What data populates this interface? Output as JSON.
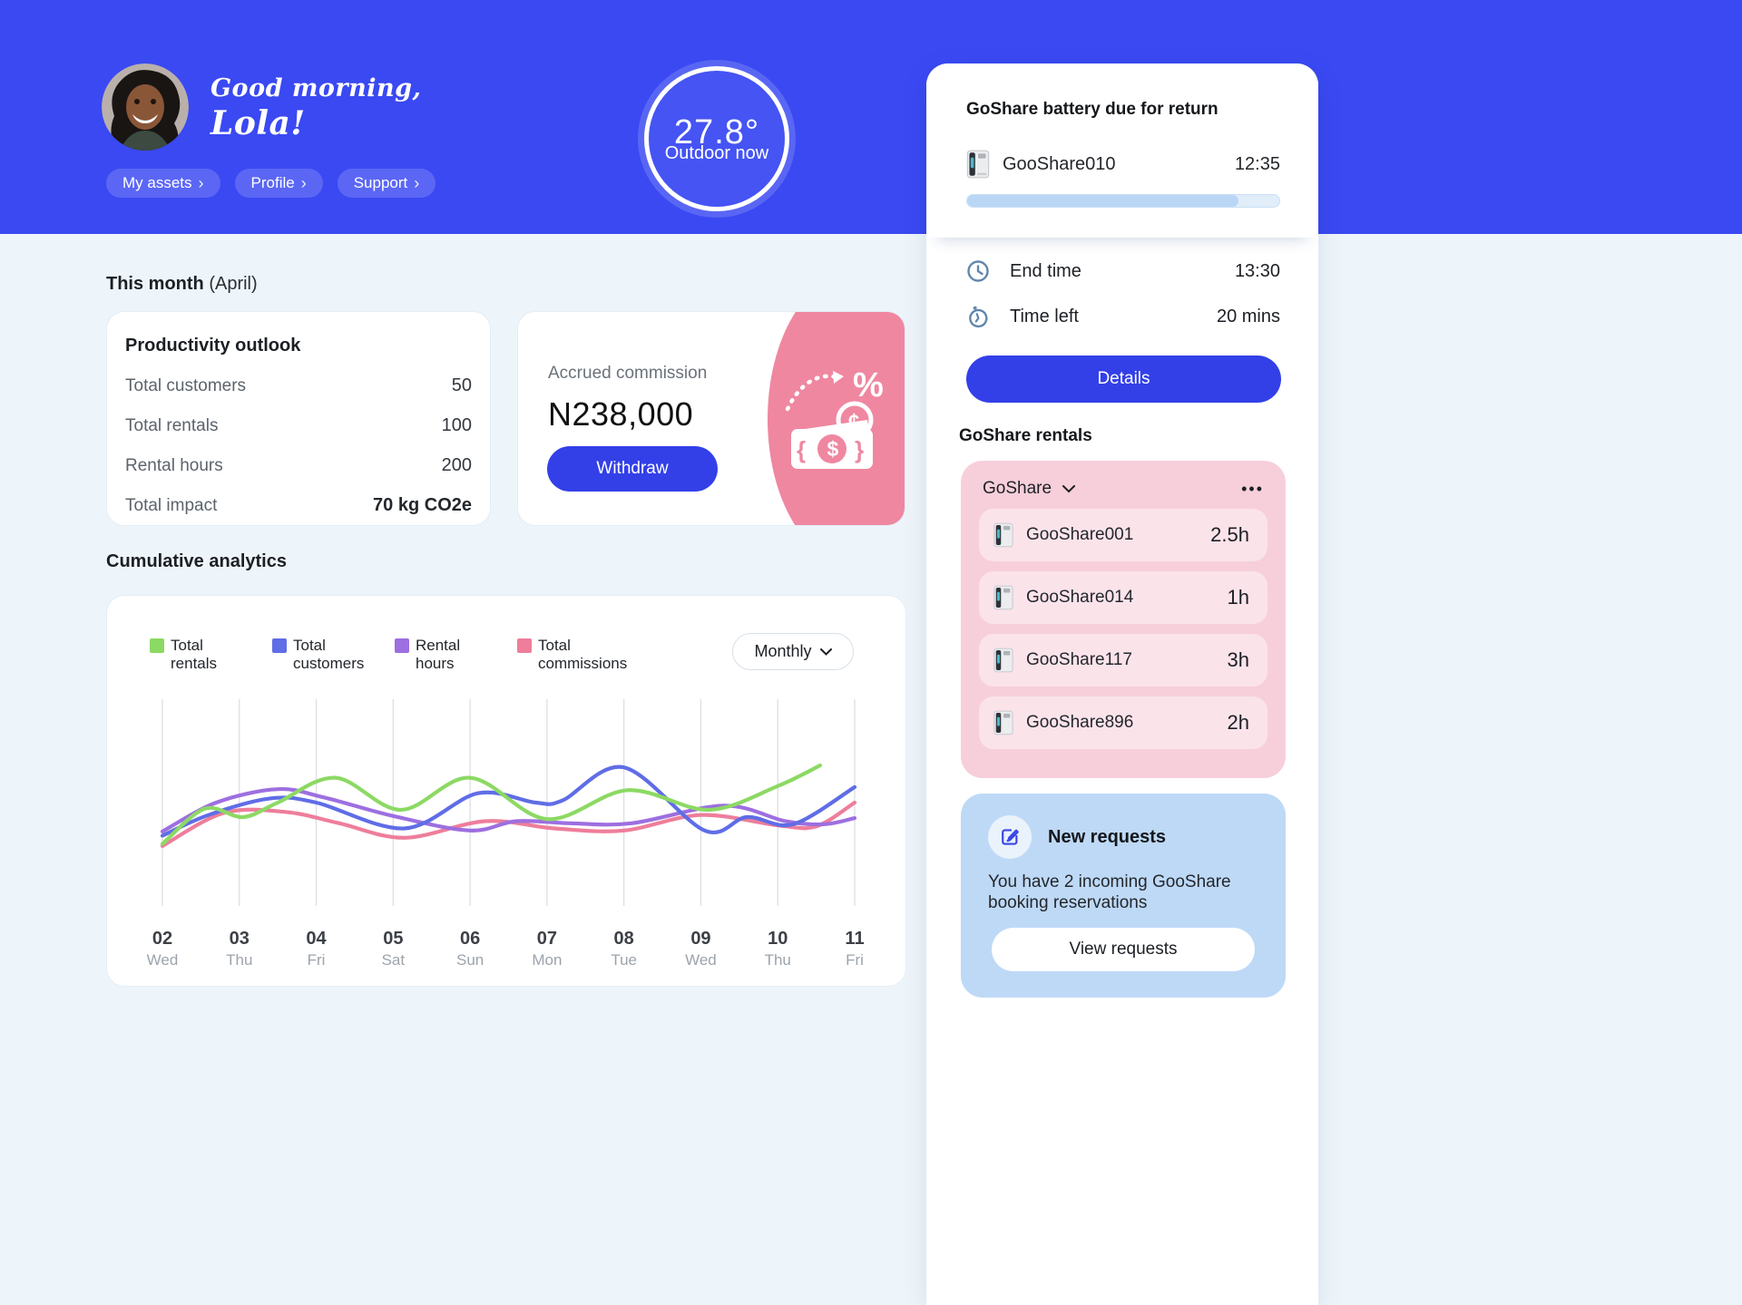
{
  "colors": {
    "header_blue": "#3A49F2",
    "button_blue": "#3340E8",
    "pink_accent": "#EF87A0",
    "pink_card": "#F7CFDA",
    "pink_row": "#FBE3EA",
    "blue_card": "#BED9F6",
    "progress_fill": "#B9D6F4",
    "background": "#EEF5FA"
  },
  "header": {
    "greeting_line1": "Good morning,",
    "greeting_line2": "Lola!",
    "nav": [
      {
        "label": "My assets",
        "chevron": "›"
      },
      {
        "label": "Profile",
        "chevron": "›"
      },
      {
        "label": "Support",
        "chevron": "›"
      }
    ],
    "weather": {
      "temp": "27.8°",
      "label": "Outdoor now"
    }
  },
  "battery_card": {
    "title": "GoShare battery due for return",
    "device": "GooShare010",
    "due_time": "12:35",
    "progress_percent": 87,
    "end_time_label": "End time",
    "end_time": "13:30",
    "time_left_label": "Time left",
    "time_left": "20 mins",
    "details_label": "Details"
  },
  "rentals": {
    "heading": "GoShare rentals",
    "group_label": "GoShare",
    "menu_dots": "•••",
    "items": [
      {
        "name": "GooShare001",
        "hours": "2.5h"
      },
      {
        "name": "GooShare014",
        "hours": "1h"
      },
      {
        "name": "GooShare117",
        "hours": "3h"
      },
      {
        "name": "GooShare896",
        "hours": "2h"
      }
    ]
  },
  "requests": {
    "title": "New requests",
    "body": "You have 2 incoming GooShare booking reservations",
    "button": "View requests"
  },
  "month_section": {
    "title": "This month",
    "subtitle": "(April)"
  },
  "productivity": {
    "title": "Productivity outlook",
    "rows": [
      {
        "label": "Total customers",
        "value": "50"
      },
      {
        "label": "Total rentals",
        "value": "100"
      },
      {
        "label": "Rental hours",
        "value": "200"
      },
      {
        "label": "Total impact",
        "value": "70 kg CO2e"
      }
    ]
  },
  "commission": {
    "label": "Accrued commission",
    "amount": "N238,000",
    "button": "Withdraw"
  },
  "analytics": {
    "title": "Cumulative analytics",
    "range_label": "Monthly"
  },
  "chart_data": {
    "type": "line",
    "title": "Cumulative analytics",
    "x_labels": [
      {
        "num": "02",
        "day": "Wed"
      },
      {
        "num": "03",
        "day": "Thu"
      },
      {
        "num": "04",
        "day": "Fri"
      },
      {
        "num": "05",
        "day": "Sat"
      },
      {
        "num": "06",
        "day": "Sun"
      },
      {
        "num": "07",
        "day": "Mon"
      },
      {
        "num": "08",
        "day": "Tue"
      },
      {
        "num": "09",
        "day": "Wed"
      },
      {
        "num": "10",
        "day": "Thu"
      },
      {
        "num": "11",
        "day": "Fri"
      }
    ],
    "x_range": [
      2,
      11
    ],
    "y_range": [
      0,
      100
    ],
    "grid": "vertical",
    "legend_position": "top-left",
    "series": [
      {
        "name": "Total commissions",
        "color": "#EE7E9B",
        "points": [
          [
            2,
            29
          ],
          [
            2.8,
            45
          ],
          [
            3.6,
            45.5
          ],
          [
            4.3,
            40
          ],
          [
            5.15,
            33
          ],
          [
            6.2,
            41
          ],
          [
            7.1,
            37.5
          ],
          [
            8,
            36.5
          ],
          [
            9,
            44
          ],
          [
            10,
            39
          ],
          [
            10.5,
            38.5
          ],
          [
            11,
            50
          ]
        ]
      },
      {
        "name": "Rental hours",
        "color": "#9D6FE0",
        "points": [
          [
            2,
            36
          ],
          [
            2.7,
            50
          ],
          [
            3.5,
            56.5
          ],
          [
            4.1,
            52.5
          ],
          [
            5,
            43.5
          ],
          [
            6,
            36.5
          ],
          [
            6.6,
            41
          ],
          [
            7.3,
            40
          ],
          [
            8.1,
            40
          ],
          [
            9.3,
            48.5
          ],
          [
            10.1,
            41
          ],
          [
            10.6,
            39.5
          ],
          [
            11,
            42.5
          ]
        ]
      },
      {
        "name": "Total customers",
        "color": "#5F6DE6",
        "points": [
          [
            2,
            34
          ],
          [
            2.6,
            44
          ],
          [
            3.4,
            52
          ],
          [
            4,
            50
          ],
          [
            5.15,
            37.5
          ],
          [
            6.1,
            54.5
          ],
          [
            6.85,
            50
          ],
          [
            7.2,
            51
          ],
          [
            8,
            67
          ],
          [
            9.05,
            36.5
          ],
          [
            9.6,
            43
          ],
          [
            10.2,
            39.5
          ],
          [
            11,
            57.5
          ]
        ]
      },
      {
        "name": "Total rentals",
        "color": "#8CD964",
        "points": [
          [
            2,
            30
          ],
          [
            2.55,
            47
          ],
          [
            3.05,
            43
          ],
          [
            3.5,
            50
          ],
          [
            4.25,
            62
          ],
          [
            5.1,
            46.5
          ],
          [
            6,
            62
          ],
          [
            7,
            42
          ],
          [
            8.05,
            56
          ],
          [
            9.1,
            46.5
          ],
          [
            10,
            58
          ],
          [
            10.55,
            68
          ]
        ]
      }
    ],
    "legend": [
      {
        "label": "Total rentals",
        "color": "#8CD964"
      },
      {
        "label": "Total customers",
        "color": "#5F6DE6"
      },
      {
        "label": "Rental hours",
        "color": "#9D6FE0"
      },
      {
        "label": "Total commissions",
        "color": "#EE7E9B"
      }
    ]
  }
}
